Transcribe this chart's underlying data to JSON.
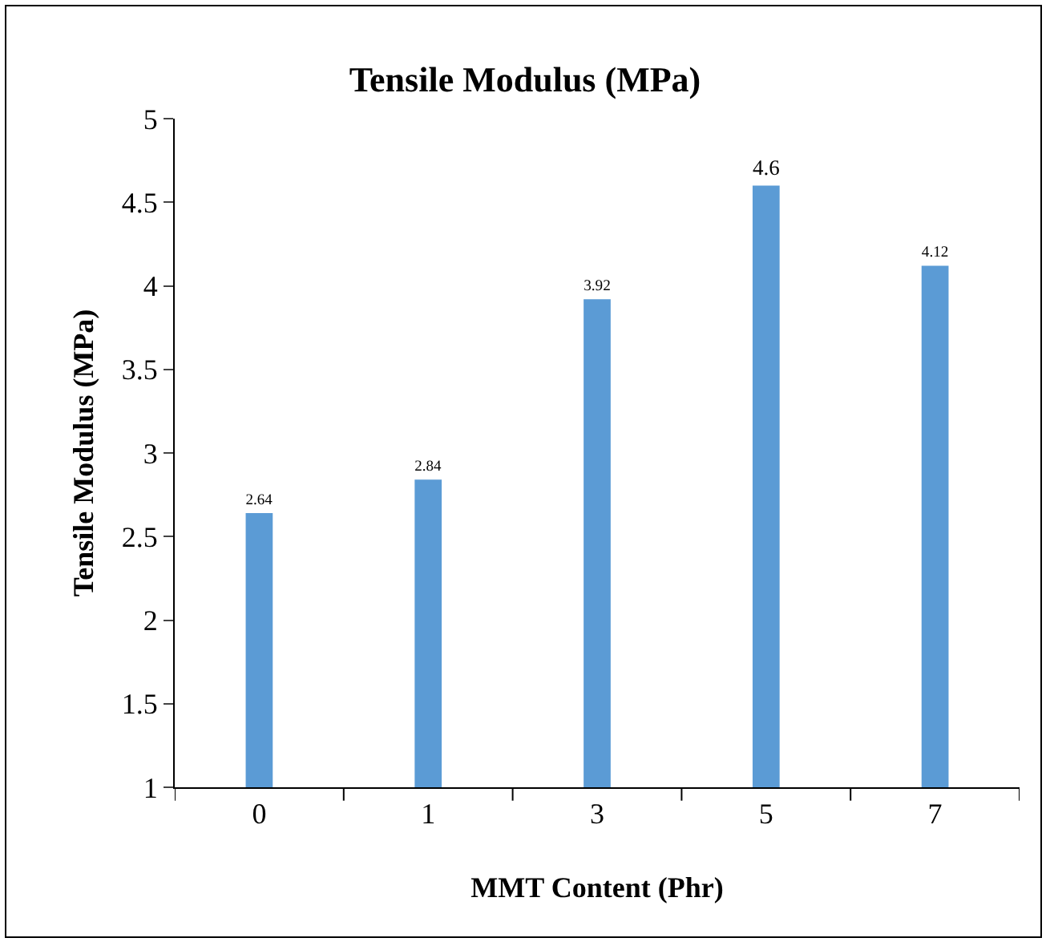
{
  "chart_data": {
    "type": "bar",
    "title": "Tensile Modulus (MPa)",
    "xlabel": "MMT Content (Phr)",
    "ylabel": "Tensile Modulus (MPa)",
    "categories": [
      "0",
      "1",
      "3",
      "5",
      "7"
    ],
    "values": [
      2.64,
      2.84,
      3.92,
      4.6,
      4.12
    ],
    "color": "#5b9bd5",
    "ylim": [
      1,
      5
    ],
    "yticks": [
      1,
      1.5,
      2,
      2.5,
      3,
      3.5,
      4,
      4.5,
      5
    ],
    "grid": false,
    "legend": false,
    "data_labels": true
  }
}
